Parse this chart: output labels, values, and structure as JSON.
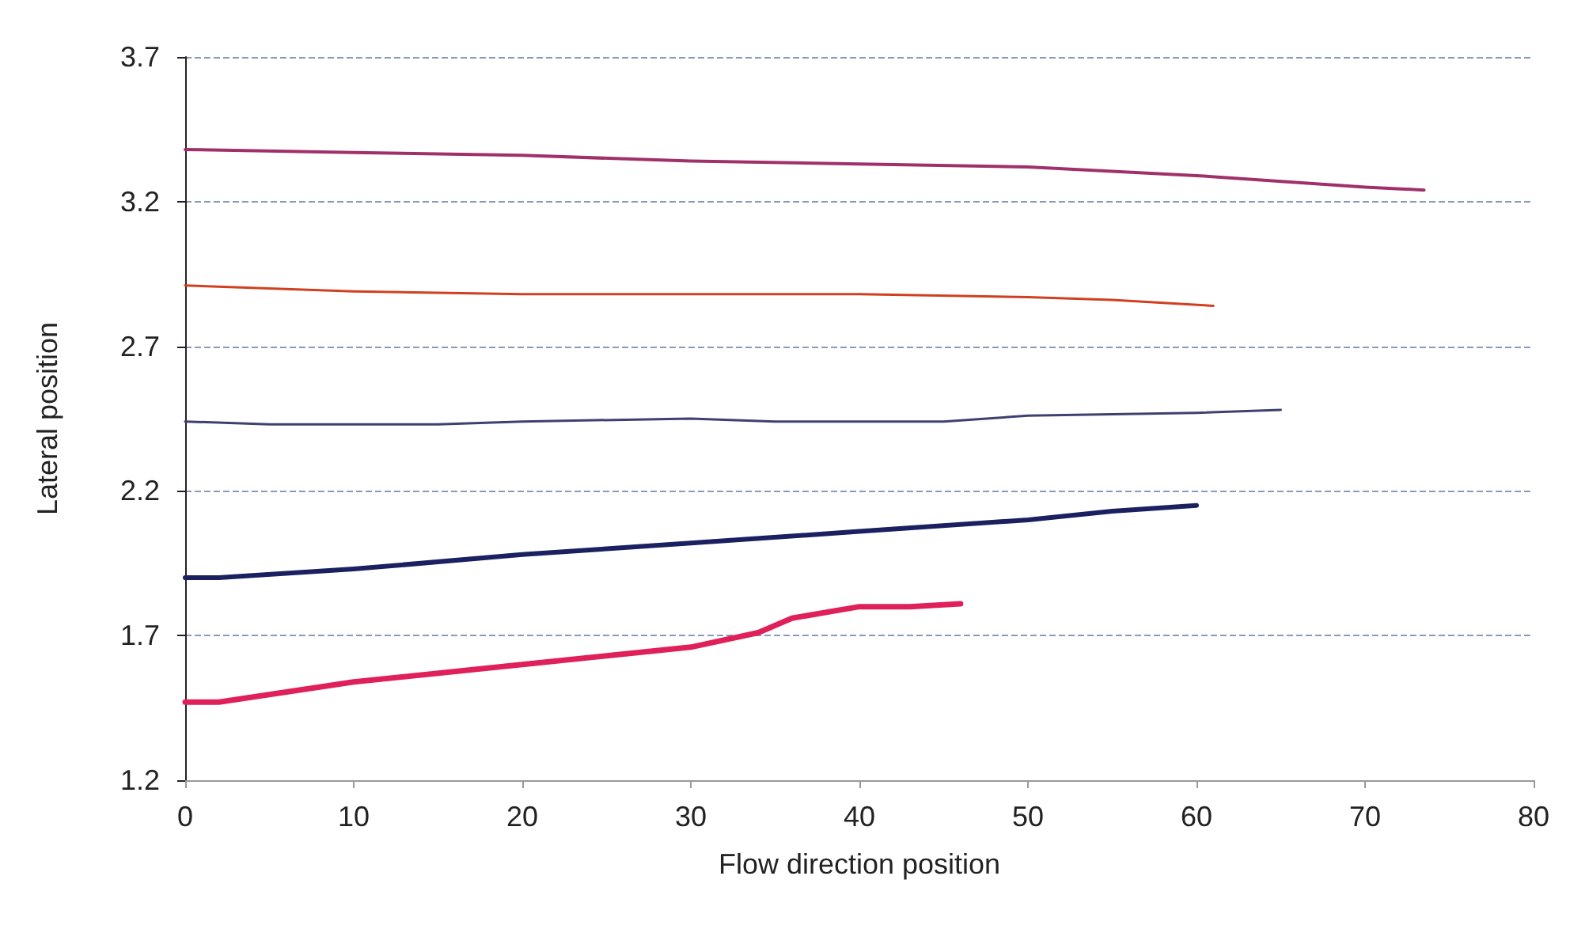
{
  "chart_data": {
    "type": "line",
    "xlabel": "Flow direction position",
    "ylabel": "Lateral position",
    "xlim": [
      0,
      80
    ],
    "xticks": [
      0,
      10,
      20,
      30,
      40,
      50,
      60,
      70,
      80
    ],
    "ylim": [
      1.2,
      3.7
    ],
    "yticks": [
      1.2,
      1.7,
      2.2,
      2.7,
      3.2,
      3.7
    ],
    "grid": "y",
    "marker": "none",
    "line_style": "solid",
    "series": [
      {
        "color": "#a0306a",
        "x": [
          0,
          10,
          20,
          30,
          40,
          50,
          60,
          70,
          73.5
        ],
        "values": [
          3.38,
          3.37,
          3.36,
          3.34,
          3.33,
          3.32,
          3.29,
          3.25,
          3.24
        ]
      },
      {
        "color": "#d04020",
        "x": [
          0,
          10,
          20,
          30,
          40,
          50,
          55,
          61
        ],
        "values": [
          2.91,
          2.89,
          2.88,
          2.88,
          2.88,
          2.87,
          2.86,
          2.84
        ]
      },
      {
        "color": "#404070",
        "x": [
          0,
          5,
          15,
          20,
          30,
          35,
          45,
          50,
          60,
          65
        ],
        "values": [
          2.44,
          2.43,
          2.43,
          2.44,
          2.45,
          2.44,
          2.44,
          2.46,
          2.47,
          2.48
        ]
      },
      {
        "color": "#1a2060",
        "x": [
          0,
          2,
          10,
          20,
          25,
          30,
          40,
          50,
          55,
          60
        ],
        "values": [
          1.9,
          1.9,
          1.93,
          1.98,
          2.0,
          2.02,
          2.06,
          2.1,
          2.13,
          2.15
        ]
      },
      {
        "color": "#e0205a",
        "x": [
          0,
          2,
          10,
          20,
          25,
          30,
          34,
          36,
          40,
          43,
          46
        ],
        "values": [
          1.47,
          1.47,
          1.54,
          1.6,
          1.63,
          1.66,
          1.71,
          1.76,
          1.8,
          1.8,
          1.81
        ]
      }
    ]
  }
}
